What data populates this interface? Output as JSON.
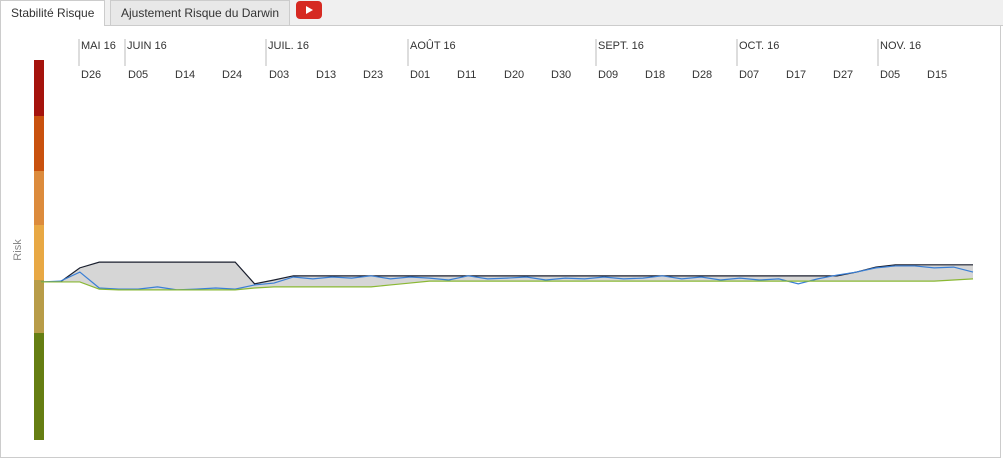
{
  "tabs": [
    "Stabilité Risque",
    "Ajustement Risque du Darwin"
  ],
  "chart_data": {
    "type": "line",
    "y_label": "Risk",
    "months": [
      "MAI 16",
      "JUIN 16",
      "JUIL. 16",
      "AOÛT 16",
      "SEPT. 16",
      "OCT. 16",
      "NOV. 16"
    ],
    "days": [
      "D26",
      "D05",
      "D14",
      "D24",
      "D03",
      "D13",
      "D23",
      "D01",
      "D11",
      "D20",
      "D30",
      "D09",
      "D18",
      "D28",
      "D07",
      "D17",
      "D27",
      "D05",
      "D15"
    ],
    "series": [
      {
        "color": "#1a1f2e",
        "values": [
          41.6,
          41.6,
          45.3,
          46.8,
          46.8,
          46.8,
          46.8,
          46.8,
          46.8,
          46.8,
          46.8,
          41.1,
          42.1,
          43.2,
          43.2,
          43.2,
          43.2,
          43.2,
          43.2,
          43.2,
          43.2,
          43.2,
          43.2,
          43.2,
          43.2,
          43.2,
          43.2,
          43.2,
          43.2,
          43.2,
          43.2,
          43.2,
          43.2,
          43.2,
          43.2,
          43.2,
          43.2,
          43.2,
          43.2,
          43.2,
          43.2,
          43.2,
          44.2,
          45.5,
          46.1,
          46.1,
          46.1,
          46.1,
          46.1
        ]
      },
      {
        "color": "#3a7fd5",
        "values": [
          41.6,
          41.8,
          44.2,
          40.0,
          39.7,
          39.7,
          40.3,
          39.5,
          39.7,
          40.0,
          39.7,
          40.8,
          41.3,
          42.9,
          42.4,
          42.9,
          42.6,
          43.2,
          42.4,
          42.9,
          42.6,
          42.1,
          43.2,
          42.4,
          42.6,
          42.9,
          42.1,
          42.6,
          42.4,
          42.9,
          42.4,
          42.6,
          43.2,
          42.4,
          42.9,
          42.1,
          42.6,
          42.1,
          42.4,
          41.1,
          42.4,
          43.4,
          44.2,
          45.3,
          45.8,
          45.8,
          45.3,
          45.5,
          44.2
        ]
      },
      {
        "color": "#8ab833",
        "values": [
          41.6,
          41.6,
          41.6,
          39.7,
          39.5,
          39.5,
          39.5,
          39.5,
          39.5,
          39.5,
          39.5,
          40.0,
          40.3,
          40.3,
          40.3,
          40.3,
          40.3,
          40.3,
          40.8,
          41.3,
          41.8,
          41.8,
          41.8,
          41.8,
          41.8,
          41.8,
          41.8,
          41.8,
          41.8,
          41.8,
          41.8,
          41.8,
          41.8,
          41.8,
          41.8,
          41.8,
          41.8,
          41.8,
          41.8,
          41.8,
          41.8,
          41.8,
          41.8,
          41.8,
          41.8,
          41.8,
          41.8,
          42.1,
          42.4
        ]
      }
    ]
  }
}
